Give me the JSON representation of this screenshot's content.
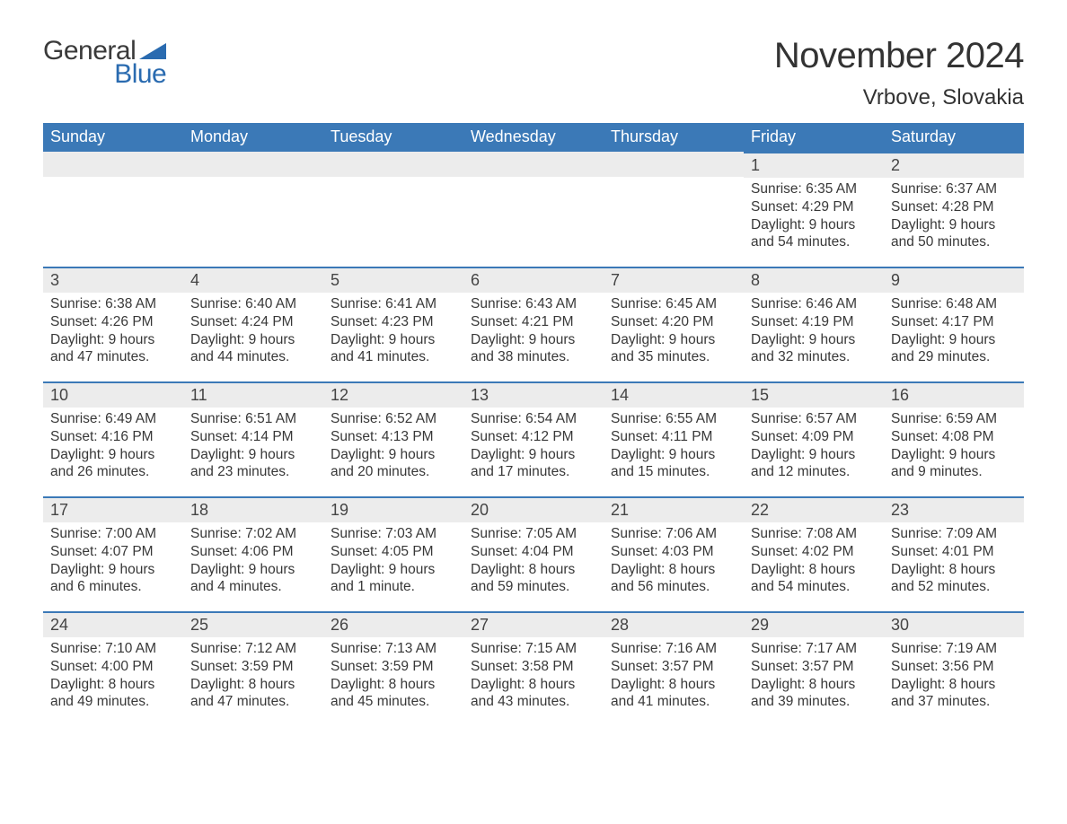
{
  "logo": {
    "text1": "General",
    "text2": "Blue",
    "triangle_color": "#2a6bb0"
  },
  "title": "November 2024",
  "location": "Vrbove, Slovakia",
  "colors": {
    "header_bg": "#3b79b7",
    "header_text": "#ffffff",
    "daynum_bg": "#ececec",
    "week_border": "#3b79b7",
    "body_text": "#383838",
    "title_text": "#333333"
  },
  "weekdays": [
    "Sunday",
    "Monday",
    "Tuesday",
    "Wednesday",
    "Thursday",
    "Friday",
    "Saturday"
  ],
  "first_weekday_index": 5,
  "days": [
    {
      "n": 1,
      "sr": "6:35 AM",
      "ss": "4:29 PM",
      "dl": "9 hours and 54 minutes."
    },
    {
      "n": 2,
      "sr": "6:37 AM",
      "ss": "4:28 PM",
      "dl": "9 hours and 50 minutes."
    },
    {
      "n": 3,
      "sr": "6:38 AM",
      "ss": "4:26 PM",
      "dl": "9 hours and 47 minutes."
    },
    {
      "n": 4,
      "sr": "6:40 AM",
      "ss": "4:24 PM",
      "dl": "9 hours and 44 minutes."
    },
    {
      "n": 5,
      "sr": "6:41 AM",
      "ss": "4:23 PM",
      "dl": "9 hours and 41 minutes."
    },
    {
      "n": 6,
      "sr": "6:43 AM",
      "ss": "4:21 PM",
      "dl": "9 hours and 38 minutes."
    },
    {
      "n": 7,
      "sr": "6:45 AM",
      "ss": "4:20 PM",
      "dl": "9 hours and 35 minutes."
    },
    {
      "n": 8,
      "sr": "6:46 AM",
      "ss": "4:19 PM",
      "dl": "9 hours and 32 minutes."
    },
    {
      "n": 9,
      "sr": "6:48 AM",
      "ss": "4:17 PM",
      "dl": "9 hours and 29 minutes."
    },
    {
      "n": 10,
      "sr": "6:49 AM",
      "ss": "4:16 PM",
      "dl": "9 hours and 26 minutes."
    },
    {
      "n": 11,
      "sr": "6:51 AM",
      "ss": "4:14 PM",
      "dl": "9 hours and 23 minutes."
    },
    {
      "n": 12,
      "sr": "6:52 AM",
      "ss": "4:13 PM",
      "dl": "9 hours and 20 minutes."
    },
    {
      "n": 13,
      "sr": "6:54 AM",
      "ss": "4:12 PM",
      "dl": "9 hours and 17 minutes."
    },
    {
      "n": 14,
      "sr": "6:55 AM",
      "ss": "4:11 PM",
      "dl": "9 hours and 15 minutes."
    },
    {
      "n": 15,
      "sr": "6:57 AM",
      "ss": "4:09 PM",
      "dl": "9 hours and 12 minutes."
    },
    {
      "n": 16,
      "sr": "6:59 AM",
      "ss": "4:08 PM",
      "dl": "9 hours and 9 minutes."
    },
    {
      "n": 17,
      "sr": "7:00 AM",
      "ss": "4:07 PM",
      "dl": "9 hours and 6 minutes."
    },
    {
      "n": 18,
      "sr": "7:02 AM",
      "ss": "4:06 PM",
      "dl": "9 hours and 4 minutes."
    },
    {
      "n": 19,
      "sr": "7:03 AM",
      "ss": "4:05 PM",
      "dl": "9 hours and 1 minute."
    },
    {
      "n": 20,
      "sr": "7:05 AM",
      "ss": "4:04 PM",
      "dl": "8 hours and 59 minutes."
    },
    {
      "n": 21,
      "sr": "7:06 AM",
      "ss": "4:03 PM",
      "dl": "8 hours and 56 minutes."
    },
    {
      "n": 22,
      "sr": "7:08 AM",
      "ss": "4:02 PM",
      "dl": "8 hours and 54 minutes."
    },
    {
      "n": 23,
      "sr": "7:09 AM",
      "ss": "4:01 PM",
      "dl": "8 hours and 52 minutes."
    },
    {
      "n": 24,
      "sr": "7:10 AM",
      "ss": "4:00 PM",
      "dl": "8 hours and 49 minutes."
    },
    {
      "n": 25,
      "sr": "7:12 AM",
      "ss": "3:59 PM",
      "dl": "8 hours and 47 minutes."
    },
    {
      "n": 26,
      "sr": "7:13 AM",
      "ss": "3:59 PM",
      "dl": "8 hours and 45 minutes."
    },
    {
      "n": 27,
      "sr": "7:15 AM",
      "ss": "3:58 PM",
      "dl": "8 hours and 43 minutes."
    },
    {
      "n": 28,
      "sr": "7:16 AM",
      "ss": "3:57 PM",
      "dl": "8 hours and 41 minutes."
    },
    {
      "n": 29,
      "sr": "7:17 AM",
      "ss": "3:57 PM",
      "dl": "8 hours and 39 minutes."
    },
    {
      "n": 30,
      "sr": "7:19 AM",
      "ss": "3:56 PM",
      "dl": "8 hours and 37 minutes."
    }
  ],
  "labels": {
    "sunrise": "Sunrise:",
    "sunset": "Sunset:",
    "daylight": "Daylight:"
  }
}
